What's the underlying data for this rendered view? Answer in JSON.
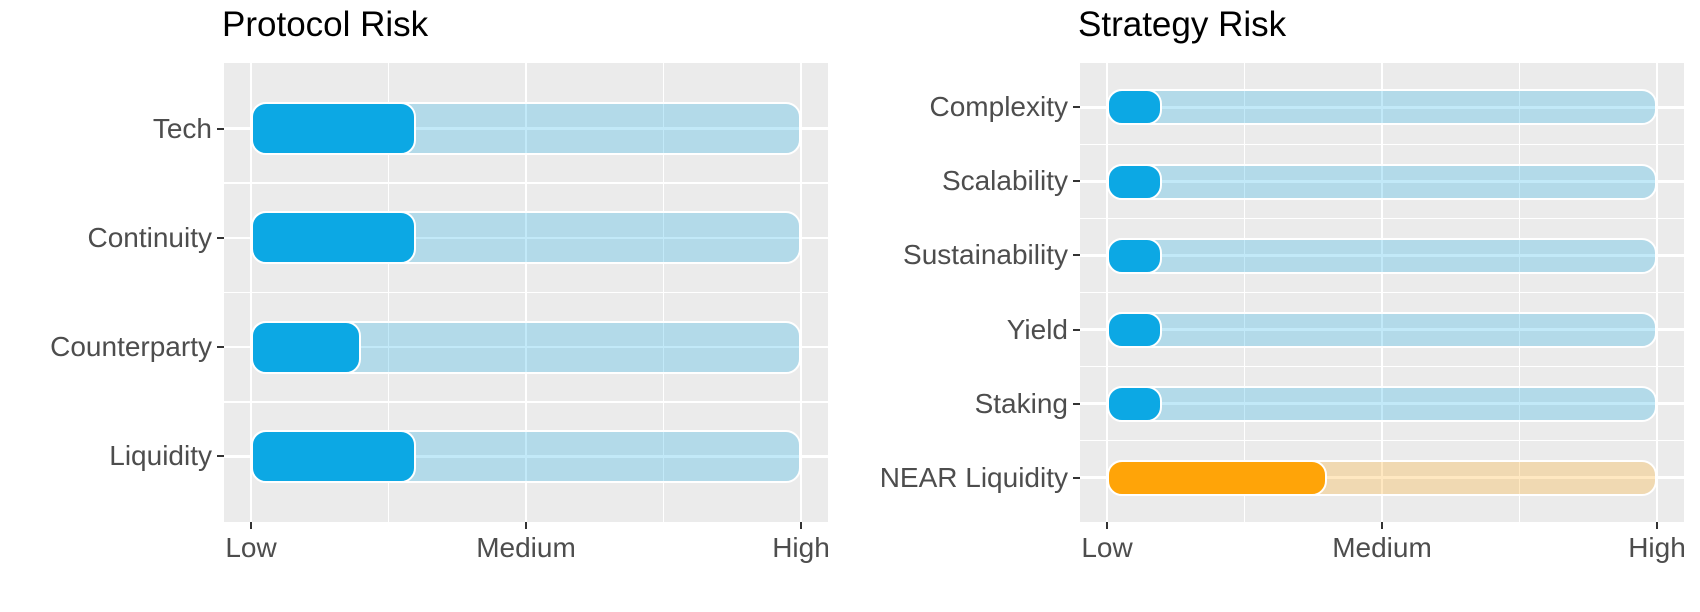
{
  "figure": {
    "background": "#FFFFFF"
  },
  "colors": {
    "panel_background": "#EBEBEB",
    "gridline": "#FFFFFF",
    "bar_blue": "#0CA8E4",
    "bar_orange": "#FFA408",
    "track_alpha": 0.25,
    "axis_text": "#4D4D4D",
    "title_text": "#000000",
    "tick_mark": "#333333"
  },
  "chart_data": [
    {
      "type": "bar",
      "orientation": "horizontal",
      "title": "Protocol Risk",
      "categories": [
        "Tech",
        "Continuity",
        "Counterparty",
        "Liquidity"
      ],
      "values": [
        0.3,
        0.3,
        0.2,
        0.3
      ],
      "bar_colors": [
        "#0CA8E4",
        "#0CA8E4",
        "#0CA8E4",
        "#0CA8E4"
      ],
      "x_tick_labels": [
        "Low",
        "Medium",
        "High"
      ],
      "xlim": [
        0,
        1
      ],
      "track_full_width": true,
      "grid": true,
      "legend": false
    },
    {
      "type": "bar",
      "orientation": "horizontal",
      "title": "Strategy Risk",
      "categories": [
        "Complexity",
        "Scalability",
        "Sustainability",
        "Yield",
        "Staking",
        "NEAR Liquidity"
      ],
      "values": [
        0.1,
        0.1,
        0.1,
        0.1,
        0.1,
        0.4
      ],
      "bar_colors": [
        "#0CA8E4",
        "#0CA8E4",
        "#0CA8E4",
        "#0CA8E4",
        "#0CA8E4",
        "#FFA408"
      ],
      "x_tick_labels": [
        "Low",
        "Medium",
        "High"
      ],
      "xlim": [
        0,
        1
      ],
      "track_full_width": true,
      "grid": true,
      "legend": false
    }
  ]
}
